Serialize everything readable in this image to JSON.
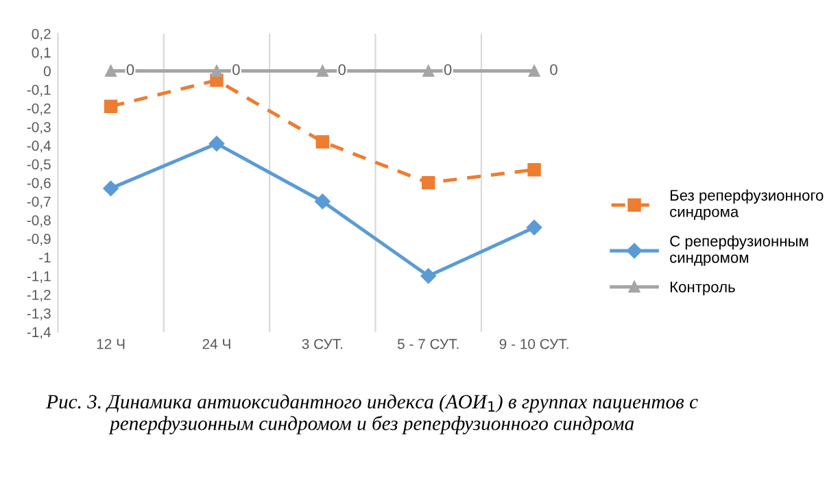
{
  "chart_data": {
    "type": "line",
    "categories": [
      "12 Ч",
      "24 Ч",
      "3 СУТ.",
      "5 - 7 СУТ.",
      "9 - 10 СУТ."
    ],
    "series": [
      {
        "name": "Без реперфузионного синдрома",
        "color": "#ed7d31",
        "values": [
          -0.19,
          -0.05,
          -0.38,
          -0.6,
          -0.53
        ],
        "marker": "square",
        "line_style": "dashed"
      },
      {
        "name": "С реперфузионным синдромом",
        "color": "#5b9bd5",
        "values": [
          -0.63,
          -0.39,
          -0.7,
          -1.1,
          -0.84
        ],
        "marker": "diamond",
        "line_style": "solid"
      },
      {
        "name": "Контроль",
        "color": "#a5a5a5",
        "values": [
          0,
          0,
          0,
          0,
          0
        ],
        "marker": "triangle",
        "line_style": "solid",
        "value_labels": [
          "0",
          "0",
          "0",
          "0",
          "0"
        ]
      }
    ],
    "ylim": [
      -1.4,
      0.2
    ],
    "yticks": [
      {
        "value": 0.2,
        "label": "0,2"
      },
      {
        "value": 0.1,
        "label": "0,1"
      },
      0,
      {
        "value": -0.1,
        "label": "-0,1"
      },
      {
        "value": -0.2,
        "label": "-0,2"
      },
      {
        "value": -0.3,
        "label": "-0,3"
      },
      {
        "value": -0.4,
        "label": "-0,4"
      },
      {
        "value": -0.5,
        "label": "-0,5"
      },
      {
        "value": -0.6,
        "label": "-0,6"
      },
      {
        "value": -0.7,
        "label": "-0,7"
      },
      {
        "value": -0.8,
        "label": "-0,8"
      },
      {
        "value": -0.9,
        "label": "-0,9"
      },
      -1,
      {
        "value": -1.1,
        "label": "-1,1"
      },
      {
        "value": -1.2,
        "label": "-1,2"
      },
      {
        "value": -1.3,
        "label": "-1,3"
      },
      {
        "value": -1.4,
        "label": "-1,4"
      }
    ],
    "grid": "x",
    "legend": "right",
    "annotations": [
      "Рис. 3. Динамика антиоксидантного индекса (АОИ$_{1}$) в группах пациентов с реперфузионным синдромом и без реперфузионного синдрома"
    ]
  }
}
